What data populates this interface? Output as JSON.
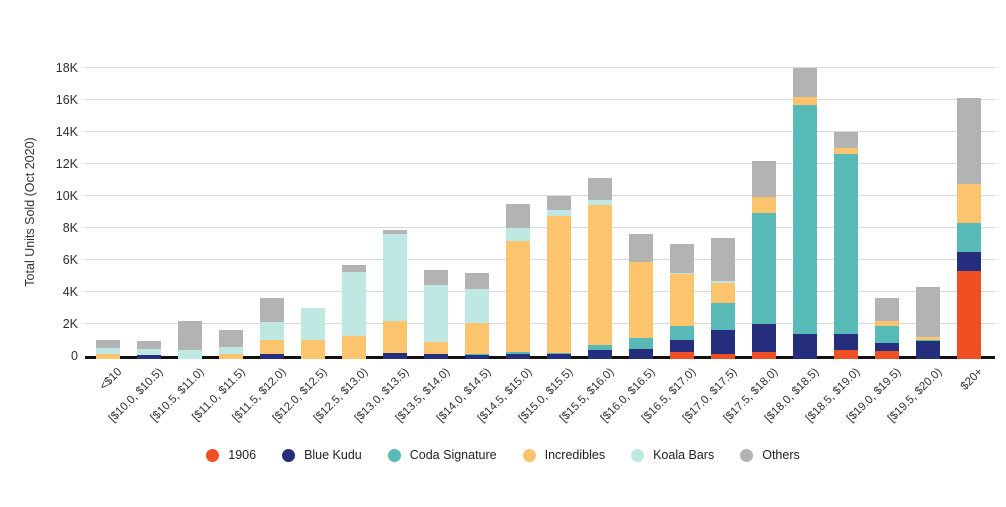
{
  "chart": {
    "background": "#ffffff",
    "grid_color": "#d9d9d9",
    "axis_line_color": "#111111",
    "text_color": "#303030"
  },
  "chart_data": {
    "type": "bar",
    "stacked": true,
    "title": "",
    "xlabel": "",
    "ylabel": "Total Units Sold (Oct 2020)",
    "ylim": [
      0,
      18000
    ],
    "ytick_step": 2000,
    "y_ticks": [
      "0",
      "2K",
      "4K",
      "6K",
      "8K",
      "10K",
      "12K",
      "14K",
      "16K",
      "18K"
    ],
    "grid": true,
    "legend_position": "bottom",
    "categories": [
      "<$10",
      "[$10.0, $10.5)",
      "[$10.5, $11.0)",
      "[$11.0, $11.5)",
      "[$11.5, $12.0)",
      "[$12.0, $12.5)",
      "[$12.5, $13.0)",
      "[$13.0, $13.5)",
      "[$13.5, $14.0)",
      "[$14.0, $14.5)",
      "[$14.5, $15.0)",
      "[$15.0, $15.5)",
      "[$15.5, $16.0)",
      "[$16.0, $16.5)",
      "[$16.5, $17.0)",
      "[$17.0, $17.5)",
      "[$17.5, $18.0)",
      "[$18.0, $18.5)",
      "[$18.5, $19.0)",
      "[$19.0, $19.5)",
      "[$19.5, $20.0)",
      "$20+"
    ],
    "series": [
      {
        "name": "1906",
        "color": "#f04e23",
        "values": [
          0,
          0,
          0,
          0,
          0,
          0,
          0,
          0,
          0,
          0,
          0,
          0,
          0,
          0,
          250,
          150,
          250,
          0,
          400,
          300,
          0,
          5300
        ]
      },
      {
        "name": "Blue Kudu",
        "color": "#252e7c",
        "values": [
          0,
          50,
          0,
          0,
          100,
          0,
          0,
          200,
          100,
          50,
          100,
          100,
          350,
          450,
          750,
          1450,
          1750,
          1400,
          950,
          500,
          950,
          1200
        ]
      },
      {
        "name": "Coda Signature",
        "color": "#57bab6",
        "values": [
          0,
          0,
          0,
          0,
          0,
          0,
          0,
          0,
          0,
          50,
          150,
          100,
          350,
          700,
          900,
          1700,
          6950,
          14300,
          11250,
          1050,
          50,
          1800
        ]
      },
      {
        "name": "Incredibles",
        "color": "#fcc46d",
        "values": [
          100,
          0,
          0,
          100,
          900,
          1000,
          1250,
          2000,
          800,
          1950,
          6950,
          8550,
          8750,
          4750,
          3200,
          1250,
          1000,
          500,
          400,
          350,
          200,
          2450
        ]
      },
      {
        "name": "Koala Bars",
        "color": "#bee8e1",
        "values": [
          400,
          400,
          400,
          450,
          1150,
          2000,
          4000,
          5400,
          3550,
          2150,
          800,
          400,
          300,
          0,
          100,
          150,
          0,
          0,
          0,
          0,
          0,
          0
        ]
      },
      {
        "name": "Others",
        "color": "#b3b3b3",
        "values": [
          500,
          500,
          1800,
          1050,
          1450,
          0,
          450,
          300,
          950,
          1000,
          1500,
          850,
          1350,
          1700,
          1800,
          2700,
          2250,
          1800,
          1000,
          1450,
          3100,
          5400
        ]
      }
    ]
  }
}
